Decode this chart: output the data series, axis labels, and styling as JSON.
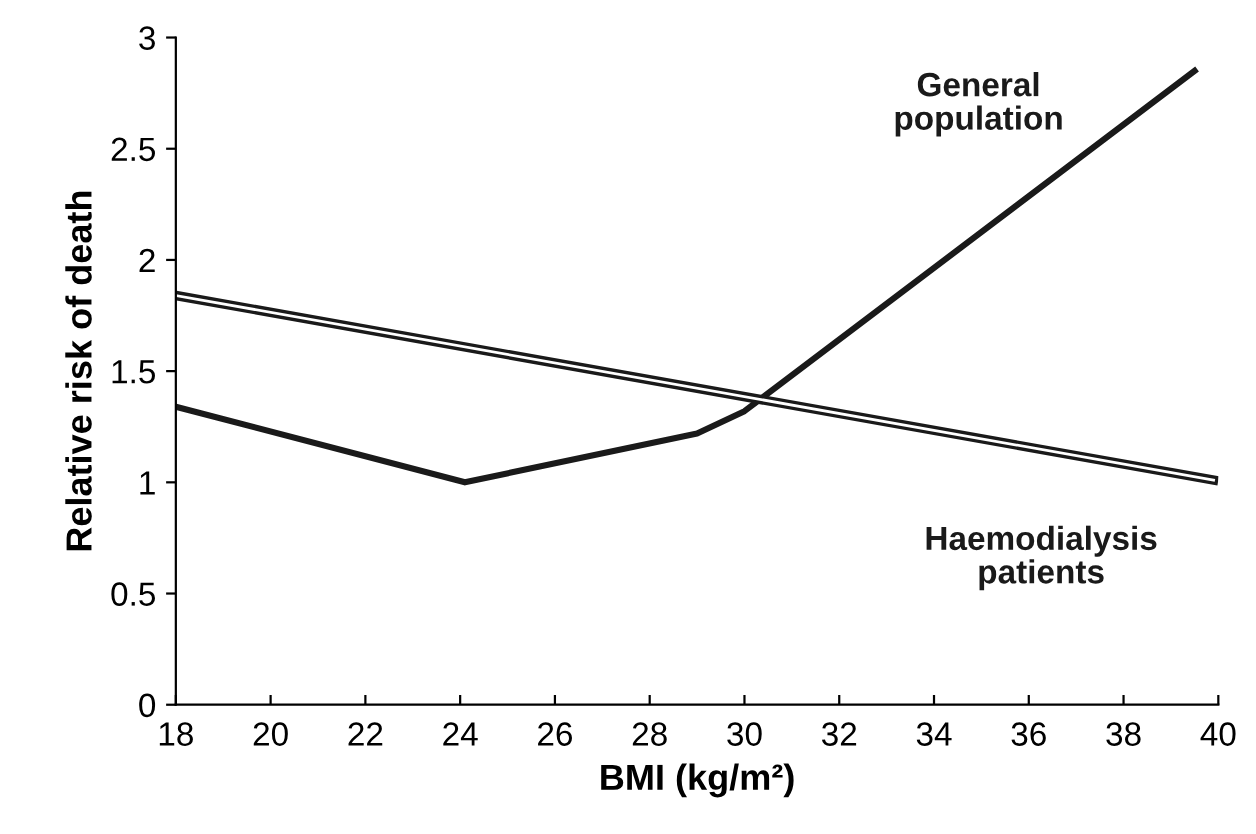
{
  "chart_data": {
    "type": "line",
    "xlabel": "BMI (kg/m²)",
    "ylabel": "Relative risk of death",
    "xlim": [
      18,
      40
    ],
    "xticks": [
      18,
      20,
      22,
      24,
      26,
      28,
      30,
      32,
      34,
      36,
      38,
      40
    ],
    "ylim": [
      0,
      3
    ],
    "yticks": [
      0,
      0.5,
      1,
      1.5,
      2,
      2.5,
      3
    ],
    "grid": false,
    "legend": false,
    "marker": "none",
    "line_style": "solid",
    "series": [
      {
        "name": "General\npopulation",
        "color": "#1a1a1a",
        "x": [
          18,
          24.1,
          29,
          30,
          39.5
        ],
        "values": [
          1.34,
          1.0,
          1.22,
          1.32,
          2.85
        ]
      },
      {
        "name": "Haemodialysis\npatients",
        "color": "#1a1a1a",
        "x": [
          18,
          39.9
        ],
        "values": [
          1.84,
          1.01
        ]
      }
    ]
  }
}
